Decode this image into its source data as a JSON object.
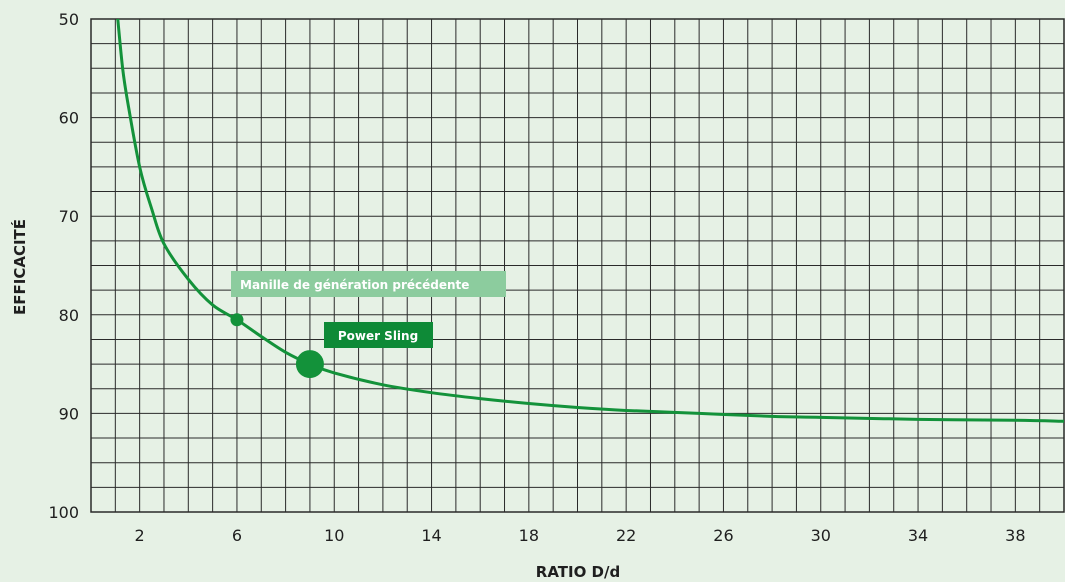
{
  "chart_data": {
    "type": "line",
    "title": "",
    "xlabel": "RATIO D/d",
    "ylabel": "EFFICACITÉ",
    "xlim": [
      0,
      40
    ],
    "ylim": [
      50,
      100
    ],
    "y_inverted": true,
    "x_major_ticks": [
      2,
      6,
      10,
      14,
      18,
      22,
      26,
      30,
      34,
      38
    ],
    "y_major_ticks": [
      50,
      60,
      70,
      80,
      90,
      100
    ],
    "grid": true,
    "series": [
      {
        "x": [
          1.1,
          1.3,
          1.5,
          2,
          2.5,
          3,
          4,
          5,
          6,
          7,
          8,
          9,
          10,
          12,
          14,
          16,
          18,
          20,
          22,
          25,
          28,
          30,
          34,
          38,
          40
        ],
        "y": [
          50,
          55,
          58.3,
          65,
          69.3,
          72.8,
          76.4,
          79.0,
          80.5,
          82.2,
          83.8,
          85.0,
          85.9,
          87.1,
          87.9,
          88.5,
          89.0,
          89.4,
          89.7,
          90.0,
          90.3,
          90.4,
          90.6,
          90.7,
          90.8
        ],
        "color": "#13923a"
      }
    ],
    "annotations": [
      {
        "label": "Manille de génération précédente",
        "x": 6,
        "y": 80.5,
        "color": "#8ccc9e"
      },
      {
        "label": "Power Sling",
        "x": 9,
        "y": 85.0,
        "color": "#0e8a37"
      }
    ]
  }
}
